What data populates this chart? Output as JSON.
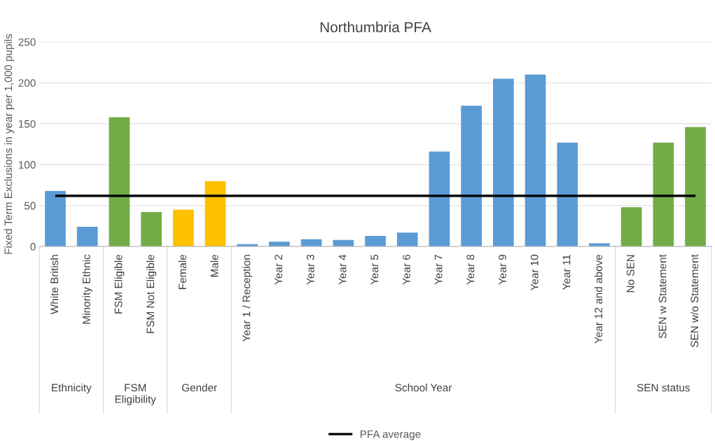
{
  "chart_data": {
    "type": "bar",
    "title": "Northumbria PFA",
    "ylabel": "Fixed Term Exclusions in year per 1,000 pupils",
    "categories": [
      "White British",
      "Minority Ethnic",
      "FSM Eligible",
      "FSM Not Eligible",
      "Female",
      "Male",
      "Year 1 / Reception",
      "Year 2",
      "Year 3",
      "Year 4",
      "Year 5",
      "Year 6",
      "Year 7",
      "Year 8",
      "Year 9",
      "Year 10",
      "Year 11",
      "Year 12 and above",
      "No SEN",
      "SEN w Statement",
      "SEN w/o Statement"
    ],
    "values": [
      68,
      24,
      158,
      42,
      45,
      80,
      3,
      6,
      9,
      8,
      13,
      17,
      116,
      172,
      205,
      210,
      127,
      4,
      48,
      127,
      146
    ],
    "colors": [
      "#5b9bd5",
      "#5b9bd5",
      "#70ad47",
      "#70ad47",
      "#ffc000",
      "#ffc000",
      "#5b9bd5",
      "#5b9bd5",
      "#5b9bd5",
      "#5b9bd5",
      "#5b9bd5",
      "#5b9bd5",
      "#5b9bd5",
      "#5b9bd5",
      "#5b9bd5",
      "#5b9bd5",
      "#5b9bd5",
      "#5b9bd5",
      "#70ad47",
      "#70ad47",
      "#70ad47"
    ],
    "annotations": [
      "Ethnicity",
      "FSM\nEligibility",
      "Gender",
      "School Year",
      "SEN status"
    ],
    "ref_lines": [
      {
        "axis": "y",
        "value": 62,
        "label": "PFA average",
        "color": "#000000",
        "line_style": "solid"
      }
    ],
    "ylim": [
      0,
      250
    ],
    "yticks": [
      0,
      50,
      100,
      150,
      200,
      250
    ],
    "grid": "y",
    "legend": "bottom"
  }
}
